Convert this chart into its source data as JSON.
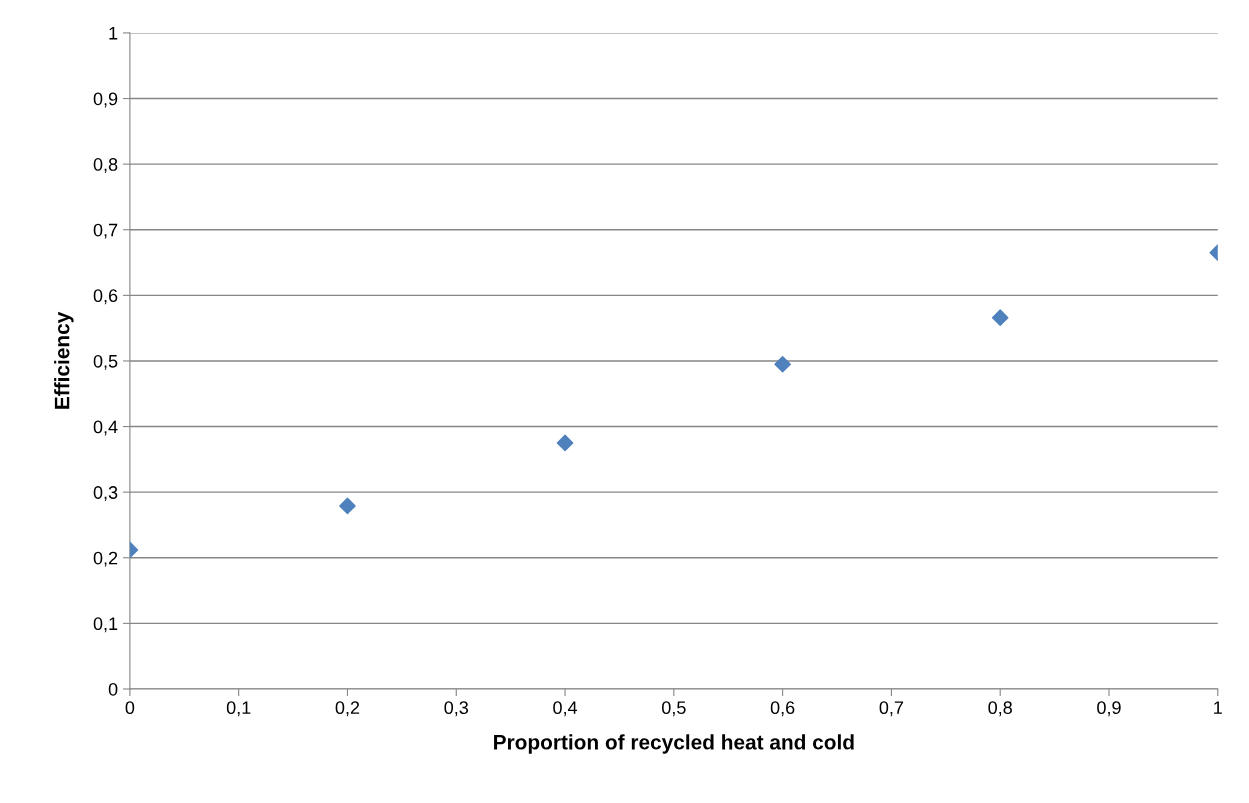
{
  "chart_data": {
    "type": "scatter",
    "xlabel": "Proportion of recycled heat and cold",
    "ylabel": "Efficiency",
    "x": [
      0,
      0.2,
      0.4,
      0.6,
      0.8,
      1
    ],
    "series": [
      {
        "color": "#4f81bd",
        "values": [
          0.212,
          0.279,
          0.375,
          0.495,
          0.566,
          0.665
        ]
      }
    ],
    "marker": "diamond",
    "grid": "y",
    "xlim": [
      0,
      1
    ],
    "ylim": [
      0,
      1
    ],
    "xticks": [
      0,
      {
        "value": 0.1,
        "label": "0,1"
      },
      {
        "value": 0.2,
        "label": "0,2"
      },
      {
        "value": 0.3,
        "label": "0,3"
      },
      {
        "value": 0.4,
        "label": "0,4"
      },
      {
        "value": 0.5,
        "label": "0,5"
      },
      {
        "value": 0.6,
        "label": "0,6"
      },
      {
        "value": 0.7,
        "label": "0,7"
      },
      {
        "value": 0.8,
        "label": "0,8"
      },
      {
        "value": 0.9,
        "label": "0,9"
      },
      1
    ],
    "yticks": [
      0,
      {
        "value": 0.1,
        "label": "0,1"
      },
      {
        "value": 0.2,
        "label": "0,2"
      },
      {
        "value": 0.3,
        "label": "0,3"
      },
      {
        "value": 0.4,
        "label": "0,4"
      },
      {
        "value": 0.5,
        "label": "0,5"
      },
      {
        "value": 0.6,
        "label": "0,6"
      },
      {
        "value": 0.7,
        "label": "0,7"
      },
      {
        "value": 0.8,
        "label": "0,8"
      },
      {
        "value": 0.9,
        "label": "0,9"
      },
      1
    ]
  }
}
